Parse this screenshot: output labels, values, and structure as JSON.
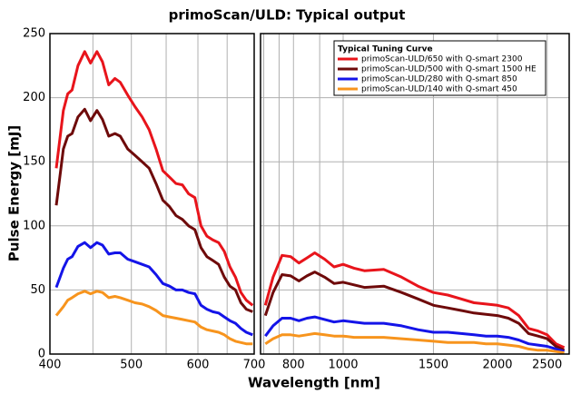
{
  "chart_data": [
    {
      "type": "line",
      "title": "primoScan/ULD: Typical output",
      "xlabel": "Wavelength [nm]",
      "ylabel": "Pulse Energy [mJ]",
      "xscale": "log",
      "xlim": [
        400,
        700
      ],
      "xticks": [
        400,
        500,
        600,
        700
      ],
      "xminor": [
        450,
        550,
        650
      ],
      "ylim": [
        0,
        250
      ],
      "yticks": [
        0,
        50,
        100,
        150,
        200,
        250
      ],
      "grid": true,
      "x": [
        407,
        415,
        420,
        425,
        432,
        440,
        447,
        455,
        462,
        470,
        478,
        485,
        495,
        505,
        515,
        525,
        535,
        545,
        555,
        565,
        575,
        585,
        595,
        605,
        615,
        625,
        635,
        645,
        655,
        665,
        675,
        685,
        697
      ],
      "series": [
        {
          "color": "#e8141b",
          "values": [
            145,
            190,
            203,
            206,
            225,
            236,
            227,
            236,
            228,
            210,
            215,
            212,
            202,
            193,
            185,
            175,
            160,
            143,
            138,
            133,
            132,
            125,
            122,
            100,
            92,
            89,
            87,
            80,
            68,
            60,
            48,
            42,
            38
          ]
        },
        {
          "color": "#6e0a0a",
          "values": [
            116,
            160,
            170,
            172,
            185,
            191,
            182,
            190,
            183,
            170,
            172,
            170,
            160,
            155,
            150,
            145,
            133,
            120,
            115,
            108,
            105,
            100,
            97,
            83,
            76,
            73,
            70,
            60,
            53,
            50,
            40,
            35,
            33
          ]
        },
        {
          "color": "#1414e8",
          "values": [
            52,
            67,
            74,
            76,
            84,
            87,
            83,
            87,
            85,
            78,
            79,
            79,
            74,
            72,
            70,
            68,
            62,
            55,
            53,
            50,
            50,
            48,
            47,
            38,
            35,
            33,
            32,
            29,
            26,
            24,
            20,
            17,
            15
          ]
        },
        {
          "color": "#f7941d",
          "values": [
            30,
            37,
            42,
            44,
            47,
            49,
            47,
            49,
            48,
            44,
            45,
            44,
            42,
            40,
            39,
            37,
            34,
            30,
            29,
            28,
            27,
            26,
            25,
            21,
            19,
            18,
            17,
            15,
            12,
            10,
            9,
            8,
            8
          ]
        }
      ]
    },
    {
      "type": "line",
      "legend_title": "Typical Tuning Curve",
      "legend": "top-right",
      "xscale": "log",
      "xlim": [
        690,
        2760
      ],
      "xticks": [
        800,
        1000,
        1500,
        2000,
        2500
      ],
      "xminor": [
        700,
        750,
        900
      ],
      "ylim": [
        0,
        250
      ],
      "ygrid": [
        50,
        100,
        150,
        200
      ],
      "grid": true,
      "x": [
        705,
        730,
        760,
        790,
        820,
        850,
        880,
        920,
        960,
        1000,
        1050,
        1100,
        1200,
        1300,
        1400,
        1500,
        1600,
        1700,
        1800,
        1900,
        2000,
        2100,
        2200,
        2300,
        2400,
        2500,
        2600,
        2700
      ],
      "series": [
        {
          "name": "primoScan-ULD/650 with Q-smart 2300",
          "color": "#e8141b",
          "values": [
            38,
            60,
            77,
            76,
            71,
            75,
            79,
            74,
            68,
            70,
            67,
            65,
            66,
            60,
            53,
            48,
            46,
            43,
            40,
            39,
            38,
            36,
            30,
            20,
            18,
            15,
            8,
            5
          ]
        },
        {
          "name": "primoScan-ULD/500 with Q-smart 1500 HE",
          "color": "#6e0a0a",
          "values": [
            30,
            48,
            62,
            61,
            57,
            61,
            64,
            60,
            55,
            56,
            54,
            52,
            53,
            48,
            43,
            38,
            36,
            34,
            32,
            31,
            30,
            28,
            24,
            16,
            14,
            12,
            6,
            3
          ]
        },
        {
          "name": "primoScan-ULD/280 with Q-smart 850",
          "color": "#1414e8",
          "values": [
            14,
            22,
            28,
            28,
            26,
            28,
            29,
            27,
            25,
            26,
            25,
            24,
            24,
            22,
            19,
            17,
            17,
            16,
            15,
            14,
            14,
            13,
            11,
            8,
            7,
            6,
            4,
            2
          ]
        },
        {
          "name": "primoScan-ULD/140 with Q-smart 450",
          "color": "#f7941d",
          "values": [
            8,
            12,
            15,
            15,
            14,
            15,
            16,
            15,
            14,
            14,
            13,
            13,
            13,
            12,
            11,
            10,
            9,
            9,
            9,
            8,
            8,
            7,
            6,
            4,
            3,
            3,
            2,
            1
          ]
        }
      ]
    }
  ]
}
